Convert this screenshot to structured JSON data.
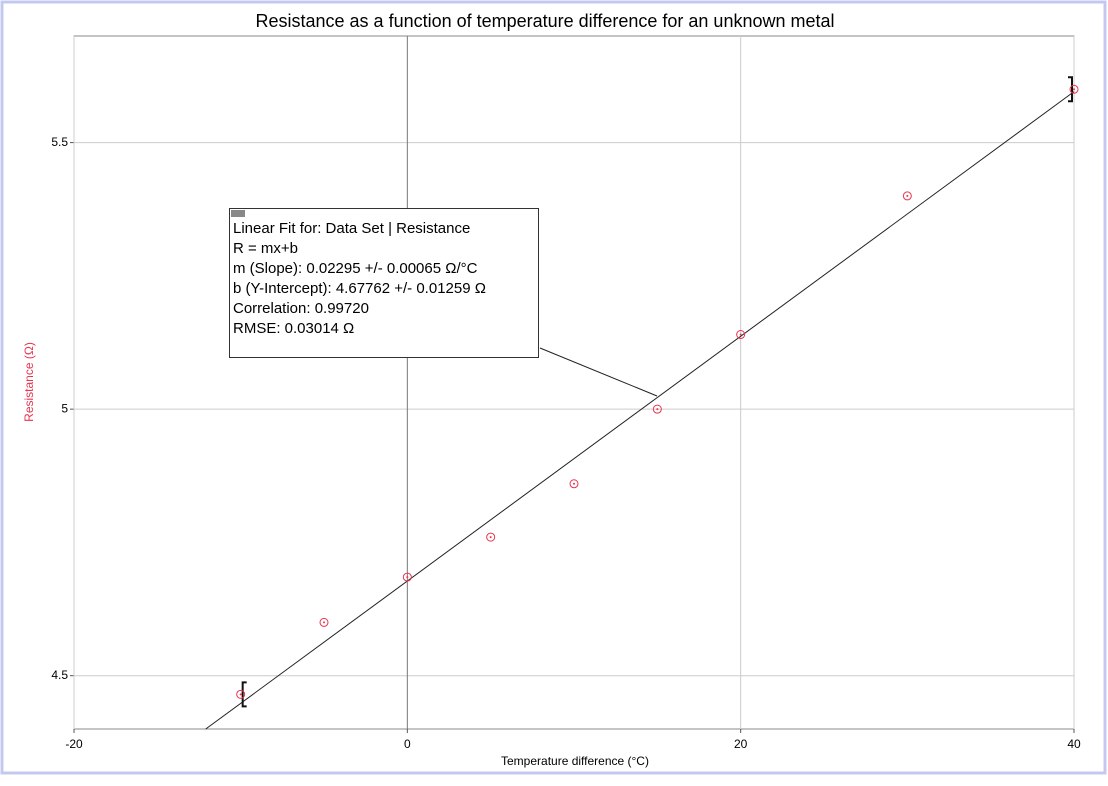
{
  "chart_data": {
    "type": "scatter",
    "title": "Resistance as a function of temperature difference for an unknown metal",
    "x_label": "Temperature difference (°C)",
    "y_label": "Resistance (Ω)",
    "x": [
      -10,
      -5,
      0,
      5,
      10,
      15,
      20,
      30,
      40
    ],
    "series": [
      {
        "name": "Resistance",
        "color": "#e8344e",
        "values": [
          4.465,
          4.6,
          4.685,
          4.76,
          4.86,
          5.0,
          5.14,
          5.4,
          5.6
        ]
      }
    ],
    "xlim": [
      -20,
      40
    ],
    "xticks": [
      -20,
      0,
      20,
      40
    ],
    "ylim": [
      4.4,
      5.7
    ],
    "yticks": [
      4.5,
      5,
      5.5
    ],
    "grid": true,
    "fit": {
      "title": "Linear Fit for: Data Set | Resistance",
      "equation": "R = mx+b",
      "slope": {
        "label": "m (Slope):",
        "value": 0.02295,
        "error": "+/- 0.00065 Ω/°C"
      },
      "intercept": {
        "label": "b (Y-Intercept):",
        "value": 4.67762,
        "error": "+/- 0.01259 Ω"
      },
      "correlation": "Correlation: 0.99720",
      "rmse": "RMSE: 0.03014 Ω"
    }
  }
}
